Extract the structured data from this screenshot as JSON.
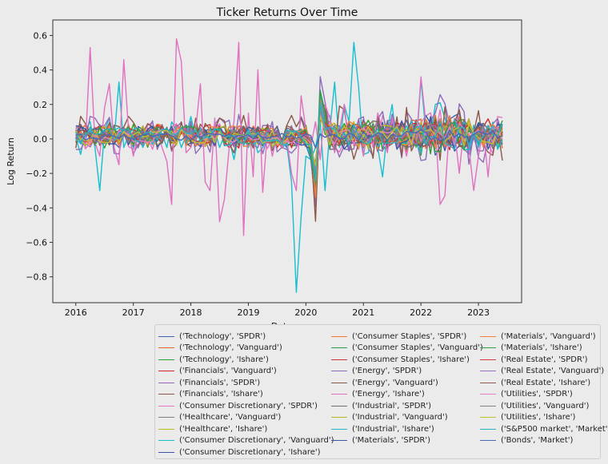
{
  "chart_data": {
    "type": "line",
    "title": "Ticker Returns Over Time",
    "xlabel": "Date",
    "ylabel": "Log Return",
    "xlim": [
      2015.6,
      2023.75
    ],
    "ylim": [
      -0.95,
      0.69
    ],
    "xticks": [
      2016,
      2017,
      2018,
      2019,
      2020,
      2021,
      2022,
      2023
    ],
    "yticks": [
      -0.8,
      -0.6,
      -0.4,
      -0.2,
      0.0,
      0.2,
      0.4,
      0.6
    ],
    "ytick_labels": [
      "−0.8",
      "−0.6",
      "−0.4",
      "−0.2",
      "0.0",
      "0.2",
      "0.4",
      "0.6"
    ],
    "grid": false,
    "legend_placement": "below-right",
    "months": 90,
    "start_year": 2016,
    "series": [
      {
        "name": "('Technology', 'SPDR')",
        "color": "#4060b0",
        "pattern": "tech"
      },
      {
        "name": "('Technology', 'Vanguard')",
        "color": "#e8622f",
        "pattern": "tech"
      },
      {
        "name": "('Technology', 'Ishare')",
        "color": "#2ca02c",
        "pattern": "tech"
      },
      {
        "name": "('Financials', 'Vanguard')",
        "color": "#d62728",
        "pattern": "fin"
      },
      {
        "name": "('Financials', 'SPDR')",
        "color": "#9467bd",
        "pattern": "fin"
      },
      {
        "name": "('Financials', 'Ishare')",
        "color": "#8c564b",
        "pattern": "fin"
      },
      {
        "name": "('Consumer Discretionary', 'SPDR')",
        "color": "#e377c2",
        "pattern": "energy_like"
      },
      {
        "name": "('Healthcare', 'Vanguard')",
        "color": "#7f7f7f",
        "pattern": "low"
      },
      {
        "name": "('Healthcare', 'Ishare')",
        "color": "#bcbd22",
        "pattern": "low"
      },
      {
        "name": "('Consumer Discretionary', 'Vanguard')",
        "color": "#17becf",
        "pattern": "cyan_big"
      },
      {
        "name": "('Consumer Discretionary', 'Ishare')",
        "color": "#3a56a8",
        "pattern": "mid"
      },
      {
        "name": "('Consumer Staples', 'SPDR')",
        "color": "#f07830",
        "pattern": "low"
      },
      {
        "name": "('Consumer Staples', 'Vanguard')",
        "color": "#2a9a48",
        "pattern": "low"
      },
      {
        "name": "('Consumer Staples', 'Ishare')",
        "color": "#d03030",
        "pattern": "low"
      },
      {
        "name": "('Energy', 'SPDR')",
        "color": "#8e6bb8",
        "pattern": "energy"
      },
      {
        "name": "('Energy', 'Vanguard')",
        "color": "#8a5848",
        "pattern": "energy"
      },
      {
        "name": "('Energy', 'Ishare')",
        "color": "#e070c0",
        "pattern": "energy_big"
      },
      {
        "name": "('Industrial', 'SPDR')",
        "color": "#707070",
        "pattern": "mid"
      },
      {
        "name": "('Industrial', 'Vanguard')",
        "color": "#b8b820",
        "pattern": "mid"
      },
      {
        "name": "('Industrial', 'Ishare')",
        "color": "#20b8c8",
        "pattern": "mid"
      },
      {
        "name": "('Materials', 'SPDR')",
        "color": "#3858a0",
        "pattern": "mid"
      },
      {
        "name": "('Materials', 'Vanguard')",
        "color": "#f08040",
        "pattern": "mid"
      },
      {
        "name": "('Materials', 'Ishare')",
        "color": "#30a040",
        "pattern": "mid"
      },
      {
        "name": "('Real Estate', 'SPDR')",
        "color": "#d83838",
        "pattern": "low"
      },
      {
        "name": "('Real Estate', 'Vanguard')",
        "color": "#9470c0",
        "pattern": "low"
      },
      {
        "name": "('Real Estate', 'Ishare')",
        "color": "#905a50",
        "pattern": "low"
      },
      {
        "name": "('Utilities', 'SPDR')",
        "color": "#e880c8",
        "pattern": "low"
      },
      {
        "name": "('Utilities', 'Vanguard')",
        "color": "#858585",
        "pattern": "low"
      },
      {
        "name": "('Utilities', 'Ishare')",
        "color": "#c0c030",
        "pattern": "low"
      },
      {
        "name": "('S&P500 market', 'Market')",
        "color": "#28b0c0",
        "pattern": "market"
      },
      {
        "name": "('Bonds', 'Market')",
        "color": "#4868b8",
        "pattern": "bonds"
      }
    ],
    "highlights": {
      "energy_big_values": [
        0.01,
        0.05,
        -0.05,
        0.53,
        -0.02,
        -0.1,
        0.18,
        0.32,
        -0.05,
        -0.15,
        0.46,
        0.05,
        -0.1,
        0.02,
        -0.03,
        0.01,
        -0.06,
        0.03,
        -0.05,
        -0.13,
        -0.38,
        0.58,
        0.45,
        -0.08,
        -0.05,
        0.05,
        0.32,
        -0.25,
        -0.3,
        0.12,
        -0.48,
        -0.35,
        -0.05,
        0.1,
        0.56,
        -0.56,
        0.15,
        -0.22,
        0.4,
        -0.31,
        0.05,
        -0.1,
        0.02,
        -0.05,
        0.0,
        -0.2,
        -0.3,
        0.25,
        0.05,
        -0.05,
        0.1,
        -0.12,
        0.2,
        0.12,
        -0.08,
        0.05,
        0.2,
        -0.05,
        0.01,
        0.05,
        -0.1,
        0.08,
        -0.05,
        0.15,
        0.05,
        -0.08,
        0.12,
        -0.05,
        0.02,
        -0.1,
        0.05,
        -0.03,
        0.36,
        0.1,
        -0.05,
        0.08,
        -0.38,
        -0.33,
        0.1,
        0.05,
        -0.2,
        0.08,
        -0.05,
        -0.3,
        -0.1,
        0.06,
        -0.22,
        0.08,
        0.02,
        0.01
      ],
      "cyan_big_values": [
        0.01,
        -0.09,
        0.05,
        0.1,
        -0.05,
        -0.3,
        0.05,
        0.12,
        0.0,
        0.33,
        -0.05,
        0.02,
        -0.05,
        0.04,
        -0.05,
        0.02,
        -0.03,
        0.05,
        0.03,
        -0.05,
        0.1,
        0.05,
        -0.05,
        0.02,
        0.13,
        0.0,
        0.05,
        0.03,
        -0.02,
        0.05,
        -0.05,
        0.02,
        0.0,
        -0.12,
        0.03,
        0.0,
        -0.05,
        0.02,
        -0.08,
        -0.05,
        0.02,
        -0.05,
        0.0,
        -0.05,
        -0.03,
        -0.25,
        -0.89,
        -0.45,
        -0.1,
        -0.12,
        -0.05,
        0.1,
        -0.3,
        0.05,
        0.33,
        -0.05,
        0.2,
        0.1,
        0.56,
        0.3,
        -0.09,
        -0.08,
        0.05,
        -0.05,
        -0.22,
        0.05,
        0.2,
        -0.05,
        0.0,
        0.05,
        0.1,
        -0.05,
        0.34,
        0.05,
        0.0,
        0.2,
        0.21,
        0.12,
        0.02,
        -0.05,
        0.05,
        0.1,
        -0.08,
        0.08,
        -0.05,
        0.05,
        0.0,
        0.02,
        -0.05,
        0.02
      ]
    }
  }
}
